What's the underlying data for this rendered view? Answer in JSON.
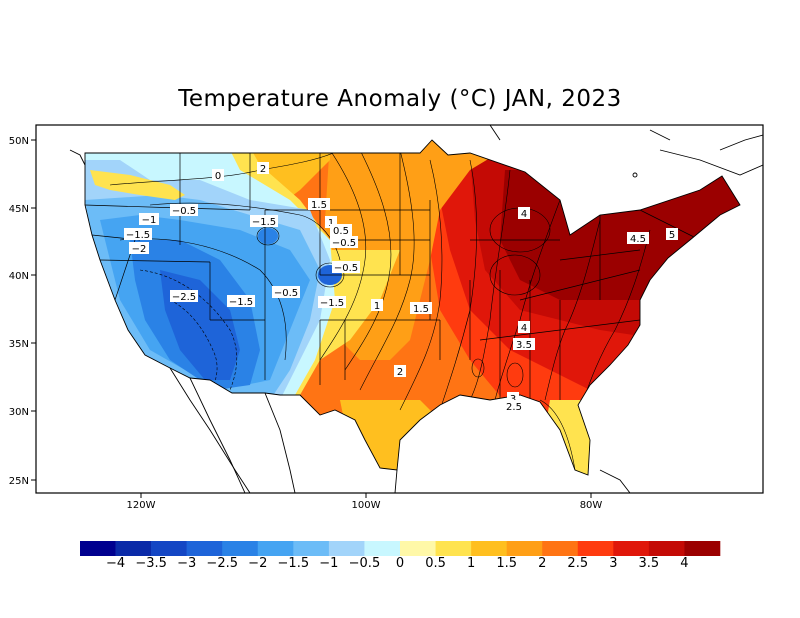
{
  "title": "Temperature Anomaly (°C) JAN, 2023",
  "lat_ticks": [
    "50N",
    "45N",
    "40N",
    "35N",
    "30N",
    "25N"
  ],
  "lon_ticks": [
    "120W",
    "100W",
    "80W"
  ],
  "contour_labels": [
    "2",
    "0",
    "-0.5",
    "-1",
    "-1.5",
    "-2",
    "-1.5",
    "-0.5",
    "-2.5",
    "-1.5",
    "-0.5",
    "-1.5",
    "1.5",
    "1",
    "0.5",
    "-0.5",
    "1",
    "1.5",
    "2",
    "4",
    "4.5",
    "5",
    "4",
    "3.5",
    "3",
    "2.5"
  ],
  "colorbar": {
    "colors": [
      "#00008f",
      "#0a2aa8",
      "#1446c4",
      "#1e64d9",
      "#2a82e6",
      "#45a4f2",
      "#6cbcf7",
      "#a2d4fa",
      "#c8f7ff",
      "#fff8a8",
      "#ffe34f",
      "#ffbf1f",
      "#ff9f16",
      "#ff7414",
      "#ff3b0f",
      "#e0170a",
      "#c40a05",
      "#9b0000"
    ],
    "labels": [
      "-4",
      "-3.5",
      "-3",
      "-2.5",
      "-2",
      "-1.5",
      "-1",
      "-0.5",
      "0",
      "0.5",
      "1",
      "1.5",
      "2",
      "2.5",
      "3",
      "3.5",
      "4"
    ]
  }
}
